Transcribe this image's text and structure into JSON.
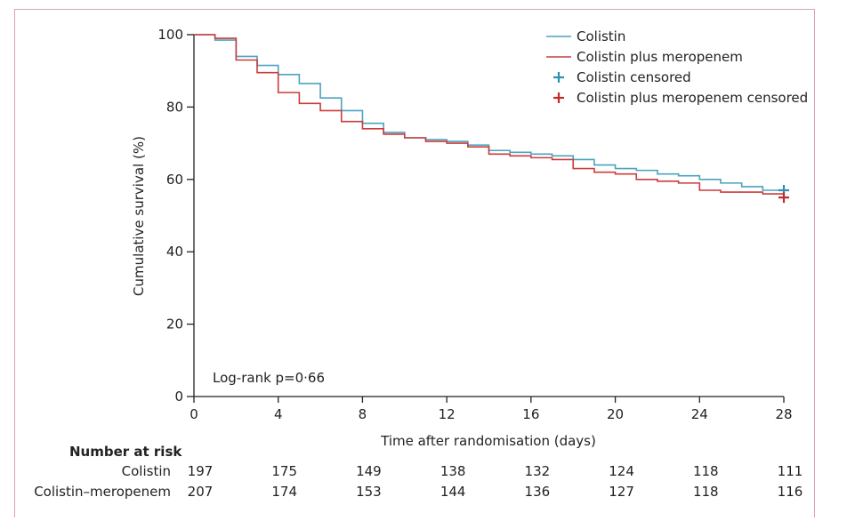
{
  "chart_data": {
    "type": "line",
    "xlabel": "Time after randomisation (days)",
    "ylabel": "Cumulative survival (%)",
    "xlim": [
      0,
      28
    ],
    "ylim": [
      0,
      100
    ],
    "xticks": [
      0,
      4,
      8,
      12,
      16,
      20,
      24,
      28
    ],
    "yticks": [
      0,
      20,
      40,
      60,
      80,
      100
    ],
    "grid": false,
    "legend_position": "top-right",
    "annotation": "Log-rank p=0·66",
    "series": [
      {
        "name": "Colistin",
        "color": "#4aa3bf",
        "step": true,
        "x": [
          0,
          1,
          2,
          3,
          4,
          5,
          6,
          7,
          8,
          9,
          10,
          11,
          12,
          13,
          14,
          15,
          16,
          17,
          18,
          19,
          20,
          21,
          22,
          23,
          24,
          25,
          26,
          27,
          28
        ],
        "y": [
          100,
          98.5,
          94,
          91.5,
          89,
          86.5,
          82.5,
          79,
          75.5,
          73,
          71.5,
          71,
          70.5,
          69.5,
          68,
          67.5,
          67,
          66.5,
          65.5,
          64,
          63,
          62.5,
          61.5,
          61,
          60,
          59,
          58,
          57,
          56.5
        ]
      },
      {
        "name": "Colistin plus meropenem",
        "color": "#cc3b3b",
        "step": true,
        "x": [
          0,
          1,
          2,
          3,
          4,
          5,
          6,
          7,
          8,
          9,
          10,
          11,
          12,
          13,
          14,
          15,
          16,
          17,
          18,
          19,
          20,
          21,
          22,
          23,
          24,
          25,
          26,
          27,
          28
        ],
        "y": [
          100,
          99,
          93,
          89.5,
          84,
          81,
          79,
          76,
          74,
          72.5,
          71.5,
          70.5,
          70,
          69,
          67,
          66.5,
          66,
          65.5,
          63,
          62,
          61.5,
          60,
          59.5,
          59,
          57,
          56.5,
          56.5,
          56,
          55
        ]
      }
    ],
    "censored": [
      {
        "name": "Colistin censored",
        "color": "#2f8fb3",
        "x": 28,
        "y": 57
      },
      {
        "name": "Colistin plus meropenem censored",
        "color": "#c42a2a",
        "x": 28,
        "y": 55
      }
    ],
    "risk_table": {
      "heading": "Number at risk",
      "times": [
        0,
        4,
        8,
        12,
        16,
        20,
        24,
        28
      ],
      "rows": [
        {
          "label": "Colistin",
          "values": [
            197,
            175,
            149,
            138,
            132,
            124,
            118,
            111
          ]
        },
        {
          "label": "Colistin–meropenem",
          "values": [
            207,
            174,
            153,
            144,
            136,
            127,
            118,
            116
          ]
        }
      ]
    }
  }
}
